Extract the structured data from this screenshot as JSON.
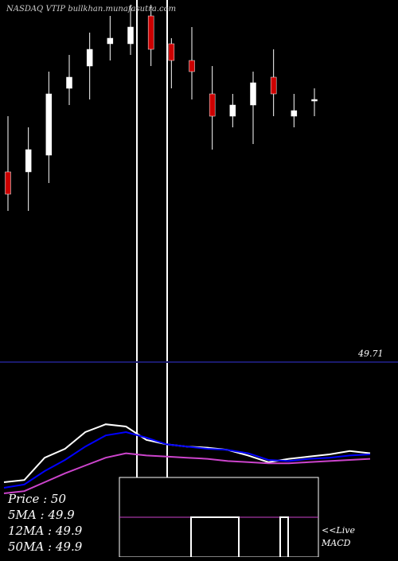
{
  "header": {
    "title": "NASDAQ VTIP bullkhan.munafasutra.com"
  },
  "colors": {
    "background": "#000000",
    "up": "#ffffff",
    "down": "#cc0000",
    "ma5": "#ffffff",
    "ma12": "#0000ff",
    "ma50": "#cc44cc",
    "divider": "#1a1a6e"
  },
  "chart_data": [
    {
      "type": "candlestick",
      "title": "NASDAQ VTIP bullkhan.munafasutra.com",
      "ylim": [
        49.6,
        50.2
      ],
      "price_label": "49.71",
      "candles": [
        {
          "o": 49.92,
          "h": 50.02,
          "l": 49.85,
          "c": 49.88
        },
        {
          "o": 49.92,
          "h": 50.0,
          "l": 49.85,
          "c": 49.96
        },
        {
          "o": 49.95,
          "h": 50.1,
          "l": 49.9,
          "c": 50.06
        },
        {
          "o": 50.07,
          "h": 50.13,
          "l": 50.04,
          "c": 50.09
        },
        {
          "o": 50.11,
          "h": 50.17,
          "l": 50.05,
          "c": 50.14
        },
        {
          "o": 50.15,
          "h": 50.2,
          "l": 50.12,
          "c": 50.16
        },
        {
          "o": 50.15,
          "h": 50.22,
          "l": 50.13,
          "c": 50.18
        },
        {
          "o": 50.2,
          "h": 50.22,
          "l": 50.11,
          "c": 50.14
        },
        {
          "o": 50.15,
          "h": 50.16,
          "l": 50.07,
          "c": 50.12
        },
        {
          "o": 50.12,
          "h": 50.18,
          "l": 50.05,
          "c": 50.1
        },
        {
          "o": 50.06,
          "h": 50.11,
          "l": 49.96,
          "c": 50.02
        },
        {
          "o": 50.02,
          "h": 50.06,
          "l": 50.0,
          "c": 50.04
        },
        {
          "o": 50.04,
          "h": 50.1,
          "l": 49.97,
          "c": 50.08
        },
        {
          "o": 50.09,
          "h": 50.14,
          "l": 50.02,
          "c": 50.06
        },
        {
          "o": 50.02,
          "h": 50.06,
          "l": 50.0,
          "c": 50.03
        },
        {
          "o": 50.05,
          "h": 50.07,
          "l": 50.02,
          "c": 50.05
        }
      ],
      "ma5_label": "5MA : 49.9",
      "ma12_label": "12MA : 49.9",
      "ma50_label": "50MA : 49.9"
    },
    {
      "type": "line",
      "legend": {
        "price": "Price   : 50",
        "ma5": "5MA : 49.9",
        "ma12": "12MA : 49.9",
        "ma50": "50MA : 49.9"
      },
      "macd_label": "<<Live\nMACD",
      "series": [
        {
          "values": [
            0.1,
            0.12,
            0.32,
            0.4,
            0.55,
            0.62,
            0.6,
            0.48,
            0.44,
            0.42,
            0.41,
            0.39,
            0.34,
            0.28,
            0.31,
            0.33,
            0.35,
            0.38,
            0.36
          ]
        },
        {
          "values": [
            0.05,
            0.08,
            0.2,
            0.3,
            0.42,
            0.52,
            0.55,
            0.5,
            0.44,
            0.42,
            0.4,
            0.39,
            0.36,
            0.3,
            0.29,
            0.31,
            0.32,
            0.34,
            0.35
          ]
        },
        {
          "values": [
            0.0,
            0.02,
            0.1,
            0.18,
            0.25,
            0.32,
            0.36,
            0.34,
            0.33,
            0.32,
            0.31,
            0.29,
            0.28,
            0.27,
            0.27,
            0.28,
            0.29,
            0.3,
            0.31
          ]
        }
      ]
    }
  ]
}
